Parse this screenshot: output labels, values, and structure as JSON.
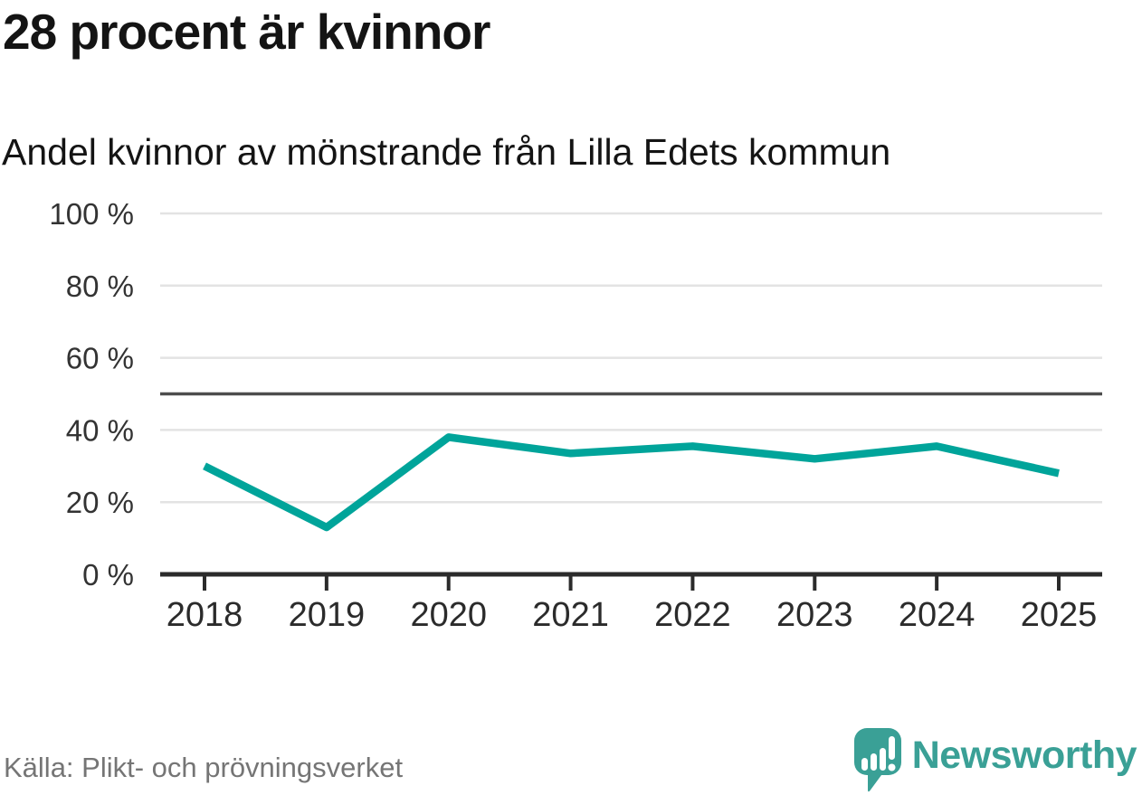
{
  "chart_data": {
    "type": "line",
    "title": "28 procent är kvinnor",
    "subtitle": "Andel kvinnor av mönstrande från Lilla Edets kommun",
    "x": [
      "2018",
      "2019",
      "2020",
      "2021",
      "2022",
      "2023",
      "2024",
      "2025"
    ],
    "series": [
      {
        "name": "Andel kvinnor av mönstrande",
        "values": [
          30,
          13,
          38,
          33.5,
          35.5,
          32,
          35.5,
          28
        ]
      }
    ],
    "unit": "%",
    "ylim": [
      0,
      100
    ],
    "yticks": [
      0,
      20,
      40,
      60,
      80,
      100
    ],
    "ytick_format": "{v} %",
    "reference_line": 50,
    "grid": "horizontal",
    "legend": "none"
  },
  "footer": {
    "source": "Källa: Plikt- och prövningsverket",
    "brand": "Newsworthy"
  },
  "icons": {
    "logo": "newsworthy-chart-bubble-icon"
  },
  "colors": {
    "line": "#00a49a",
    "grid": "#e3e3e3",
    "reference_line": "#4d4d4d",
    "axis": "#2b2b2b",
    "tick_label": "#333333",
    "title_text": "#141414",
    "source_text": "#757575",
    "brand_teal": "#3aa096"
  }
}
